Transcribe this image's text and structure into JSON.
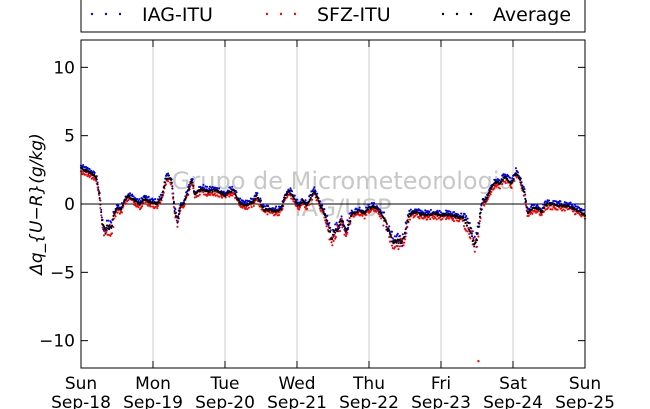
{
  "chart_data": {
    "type": "scatter",
    "title": "",
    "ylabel": "Δq_{U−R}(g/kg)",
    "ylim": [
      -12,
      12
    ],
    "yticks": [
      10,
      5,
      0,
      -5,
      -10
    ],
    "xlim": [
      0,
      7
    ],
    "grid": "vertical-lines",
    "legend_position": "top",
    "x_ticks": [
      {
        "day": "Sun",
        "date": "Sep-18",
        "x": 0
      },
      {
        "day": "Mon",
        "date": "Sep-19",
        "x": 1
      },
      {
        "day": "Tue",
        "date": "Sep-20",
        "x": 2
      },
      {
        "day": "Wed",
        "date": "Sep-21",
        "x": 3
      },
      {
        "day": "Thu",
        "date": "Sep-22",
        "x": 4
      },
      {
        "day": "Fri",
        "date": "Sep-23",
        "x": 5
      },
      {
        "day": "Sat",
        "date": "Sep-24",
        "x": 6
      },
      {
        "day": "Sun",
        "date": "Sep-25",
        "x": 7
      }
    ],
    "watermark": [
      "Grupo de Micrometeorologia",
      "IAG/USP"
    ],
    "series": [
      {
        "name": "IAG-ITU",
        "color": "#0000ff"
      },
      {
        "name": "SFZ-ITU",
        "color": "#ff0000"
      },
      {
        "name": "Average",
        "color": "#000000"
      }
    ],
    "average_trace": [
      [
        0.0,
        2.6
      ],
      [
        0.08,
        2.4
      ],
      [
        0.16,
        2.2
      ],
      [
        0.22,
        1.8
      ],
      [
        0.26,
        0.5
      ],
      [
        0.3,
        -1.6
      ],
      [
        0.34,
        -2.0
      ],
      [
        0.38,
        -1.6
      ],
      [
        0.42,
        -1.8
      ],
      [
        0.46,
        -0.8
      ],
      [
        0.5,
        -0.3
      ],
      [
        0.56,
        -0.4
      ],
      [
        0.6,
        0.2
      ],
      [
        0.66,
        0.6
      ],
      [
        0.74,
        0.3
      ],
      [
        0.82,
        0.0
      ],
      [
        0.88,
        0.4
      ],
      [
        0.94,
        0.2
      ],
      [
        1.0,
        0.1
      ],
      [
        1.06,
        0.0
      ],
      [
        1.12,
        0.5
      ],
      [
        1.18,
        1.8
      ],
      [
        1.22,
        2.0
      ],
      [
        1.26,
        1.6
      ],
      [
        1.3,
        -0.5
      ],
      [
        1.34,
        -1.2
      ],
      [
        1.38,
        -0.2
      ],
      [
        1.42,
        0.0
      ],
      [
        1.48,
        0.8
      ],
      [
        1.54,
        1.8
      ],
      [
        1.58,
        0.7
      ],
      [
        1.64,
        1.0
      ],
      [
        1.7,
        1.1
      ],
      [
        1.76,
        0.9
      ],
      [
        1.84,
        1.0
      ],
      [
        1.92,
        0.9
      ],
      [
        2.0,
        0.6
      ],
      [
        2.06,
        0.9
      ],
      [
        2.12,
        1.0
      ],
      [
        2.18,
        0.3
      ],
      [
        2.24,
        -0.1
      ],
      [
        2.32,
        0.0
      ],
      [
        2.4,
        0.2
      ],
      [
        2.44,
        0.6
      ],
      [
        2.48,
        0.2
      ],
      [
        2.54,
        -0.4
      ],
      [
        2.62,
        -0.4
      ],
      [
        2.7,
        -0.5
      ],
      [
        2.78,
        -0.4
      ],
      [
        2.84,
        0.6
      ],
      [
        2.9,
        0.9
      ],
      [
        2.94,
        0.6
      ],
      [
        2.98,
        0.2
      ],
      [
        3.02,
        -0.2
      ],
      [
        3.08,
        0.2
      ],
      [
        3.14,
        -0.1
      ],
      [
        3.2,
        0.6
      ],
      [
        3.24,
        0.9
      ],
      [
        3.28,
        0.5
      ],
      [
        3.32,
        -0.1
      ],
      [
        3.36,
        -0.4
      ],
      [
        3.4,
        -1.0
      ],
      [
        3.44,
        -1.8
      ],
      [
        3.48,
        -2.5
      ],
      [
        3.52,
        -2.0
      ],
      [
        3.56,
        -1.8
      ],
      [
        3.62,
        -1.2
      ],
      [
        3.68,
        -1.9
      ],
      [
        3.72,
        -1.4
      ],
      [
        3.76,
        -0.7
      ],
      [
        3.82,
        -0.6
      ],
      [
        3.88,
        -0.5
      ],
      [
        3.94,
        -0.7
      ],
      [
        4.0,
        -0.3
      ],
      [
        4.06,
        -0.2
      ],
      [
        4.12,
        -0.4
      ],
      [
        4.18,
        -0.8
      ],
      [
        4.22,
        -1.2
      ],
      [
        4.26,
        -1.8
      ],
      [
        4.32,
        -2.6
      ],
      [
        4.38,
        -2.9
      ],
      [
        4.42,
        -2.6
      ],
      [
        4.46,
        -2.9
      ],
      [
        4.5,
        -2.0
      ],
      [
        4.56,
        -0.8
      ],
      [
        4.62,
        -0.6
      ],
      [
        4.7,
        -0.7
      ],
      [
        4.8,
        -0.8
      ],
      [
        4.9,
        -0.7
      ],
      [
        5.0,
        -0.8
      ],
      [
        5.1,
        -0.8
      ],
      [
        5.2,
        -0.9
      ],
      [
        5.3,
        -1.0
      ],
      [
        5.36,
        -1.4
      ],
      [
        5.42,
        -2.0
      ],
      [
        5.46,
        -3.0
      ],
      [
        5.5,
        -2.5
      ],
      [
        5.54,
        -1.0
      ],
      [
        5.58,
        0.3
      ],
      [
        5.62,
        0.2
      ],
      [
        5.7,
        1.2
      ],
      [
        5.76,
        1.6
      ],
      [
        5.82,
        1.5
      ],
      [
        5.88,
        2.0
      ],
      [
        5.92,
        1.8
      ],
      [
        5.98,
        1.5
      ],
      [
        6.04,
        2.3
      ],
      [
        6.08,
        2.0
      ],
      [
        6.12,
        1.4
      ],
      [
        6.16,
        0.8
      ],
      [
        6.2,
        -0.6
      ],
      [
        6.26,
        -0.4
      ],
      [
        6.3,
        -0.3
      ],
      [
        6.34,
        -0.3
      ],
      [
        6.4,
        -0.6
      ],
      [
        6.44,
        -0.1
      ],
      [
        6.5,
        0.0
      ],
      [
        6.6,
        -0.1
      ],
      [
        6.7,
        -0.1
      ],
      [
        6.8,
        -0.2
      ],
      [
        6.9,
        -0.5
      ],
      [
        7.0,
        -0.8
      ]
    ],
    "outlier_points": [
      {
        "series": "SFZ-ITU",
        "x": 5.52,
        "y": -11.5
      }
    ]
  }
}
